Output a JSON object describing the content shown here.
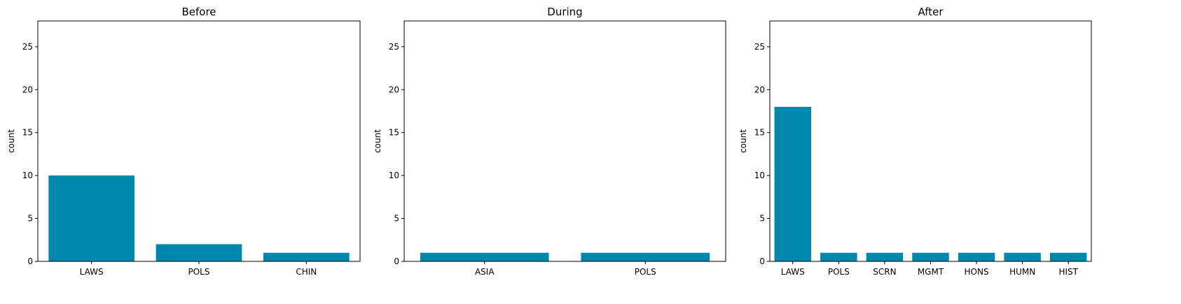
{
  "chart_data": [
    {
      "type": "bar",
      "title": "Before",
      "xlabel": "",
      "ylabel": "count",
      "categories": [
        "LAWS",
        "POLS",
        "CHIN"
      ],
      "values": [
        10,
        2,
        1
      ],
      "ylim": [
        0,
        28
      ],
      "yticks": [
        0,
        5,
        10,
        15,
        20,
        25
      ],
      "bar_color": "#0087ad",
      "grid": false
    },
    {
      "type": "bar",
      "title": "During",
      "xlabel": "",
      "ylabel": "count",
      "categories": [
        "ASIA",
        "POLS"
      ],
      "values": [
        1,
        1
      ],
      "ylim": [
        0,
        28
      ],
      "yticks": [
        0,
        5,
        10,
        15,
        20,
        25
      ],
      "bar_color": "#0087ad",
      "grid": false
    },
    {
      "type": "bar",
      "title": "After",
      "xlabel": "",
      "ylabel": "count",
      "categories": [
        "LAWS",
        "POLS",
        "SCRN",
        "MGMT",
        "HONS",
        "HUMN",
        "HIST"
      ],
      "values": [
        18,
        1,
        1,
        1,
        1,
        1,
        1
      ],
      "ylim": [
        0,
        28
      ],
      "yticks": [
        0,
        5,
        10,
        15,
        20,
        25
      ],
      "bar_color": "#0087ad",
      "grid": false
    }
  ]
}
